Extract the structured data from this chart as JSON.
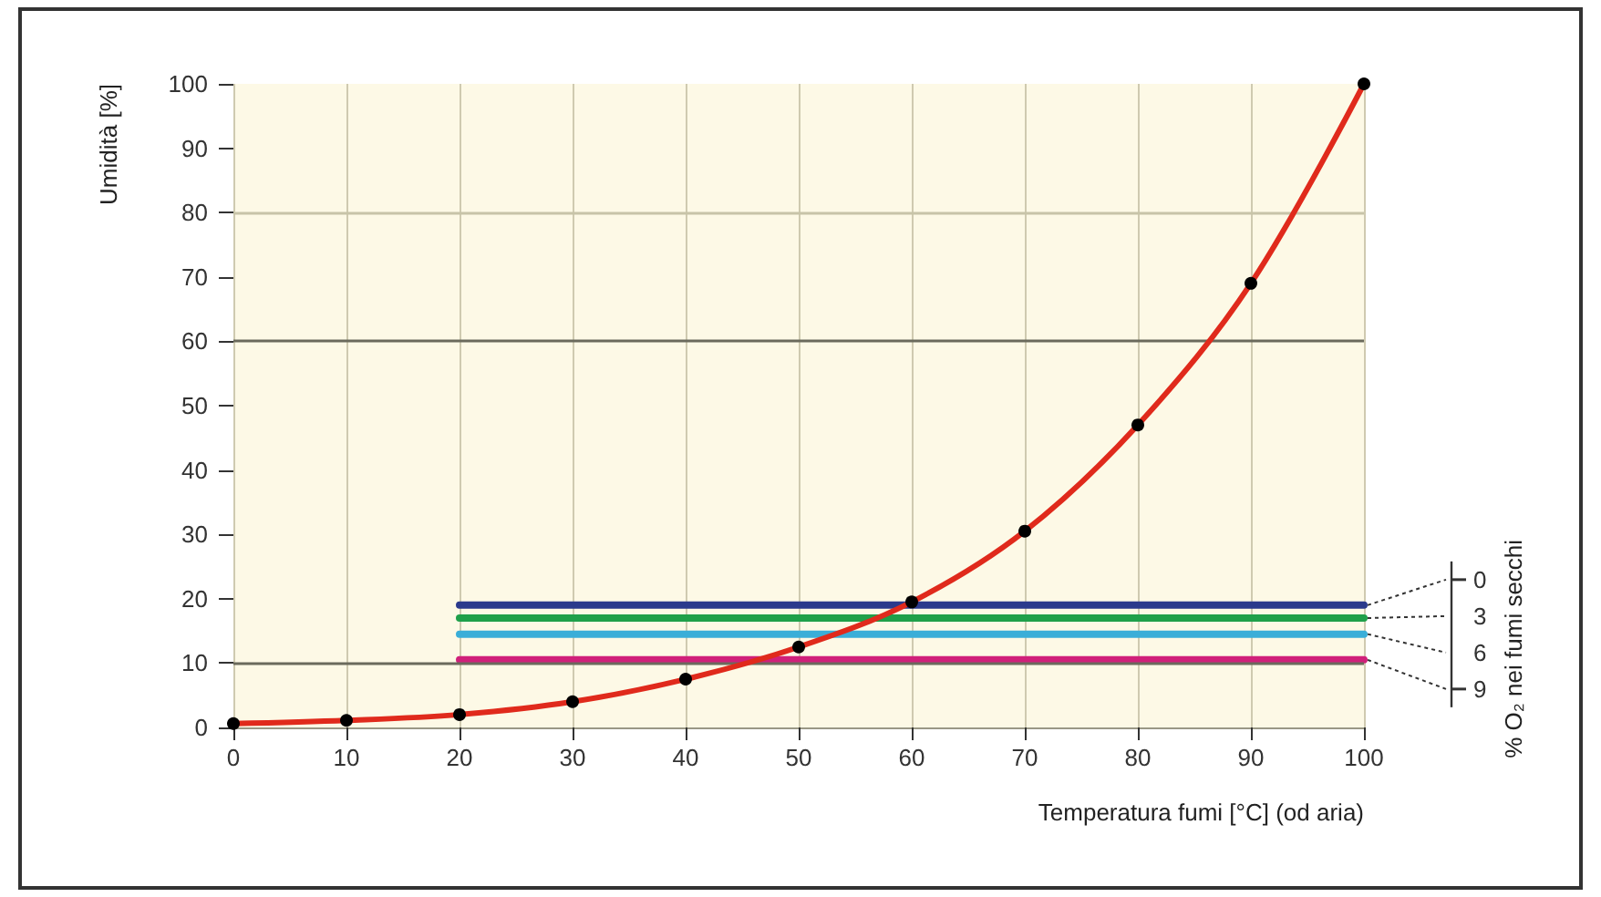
{
  "chart_data": {
    "type": "line",
    "xlabel": "Temperatura fumi [°C] (od aria)",
    "ylabel": "Umidità [%]",
    "y2label": "% O₂ nei fumi secchi",
    "x": [
      0,
      10,
      20,
      30,
      40,
      50,
      60,
      70,
      80,
      90,
      100
    ],
    "series": [
      {
        "color": "#e02a1c",
        "values": [
          0.6,
          1.1,
          2,
          4,
          7.5,
          12.5,
          19.5,
          30.5,
          47,
          69,
          100
        ]
      },
      {
        "name": "0",
        "color": "#2b3a8c",
        "marker": "none",
        "values": [
          null,
          null,
          19,
          19,
          19,
          19,
          19,
          19,
          19,
          19,
          19
        ]
      },
      {
        "name": "3",
        "color": "#1fa04a",
        "marker": "none",
        "values": [
          null,
          null,
          17,
          17,
          17,
          17,
          17,
          17,
          17,
          17,
          17
        ]
      },
      {
        "name": "6",
        "color": "#3aaed8",
        "marker": "none",
        "values": [
          null,
          null,
          14.5,
          14.5,
          14.5,
          14.5,
          14.5,
          14.5,
          14.5,
          14.5,
          14.5
        ]
      },
      {
        "name": "9",
        "color": "#d0207a",
        "marker": "none",
        "values": [
          null,
          null,
          10.5,
          10.5,
          10.5,
          10.5,
          10.5,
          10.5,
          10.5,
          10.5,
          10.5
        ]
      }
    ],
    "xlim": [
      0,
      100
    ],
    "xticks": [
      0,
      10,
      20,
      30,
      40,
      50,
      60,
      70,
      80,
      90,
      100
    ],
    "ylim": [
      0,
      100
    ],
    "yticks": [
      0,
      10,
      20,
      30,
      40,
      50,
      60,
      70,
      80,
      90,
      100
    ],
    "ref_lines": [
      {
        "axis": "y",
        "value": 80,
        "color": "#c8c4a8"
      },
      {
        "axis": "y",
        "value": 60,
        "color": "#6b6a5c"
      },
      {
        "axis": "y",
        "value": 10,
        "color": "#6b6a5c"
      }
    ],
    "grid": "x",
    "legend": false,
    "marker": "circle",
    "line_style": "solid"
  }
}
